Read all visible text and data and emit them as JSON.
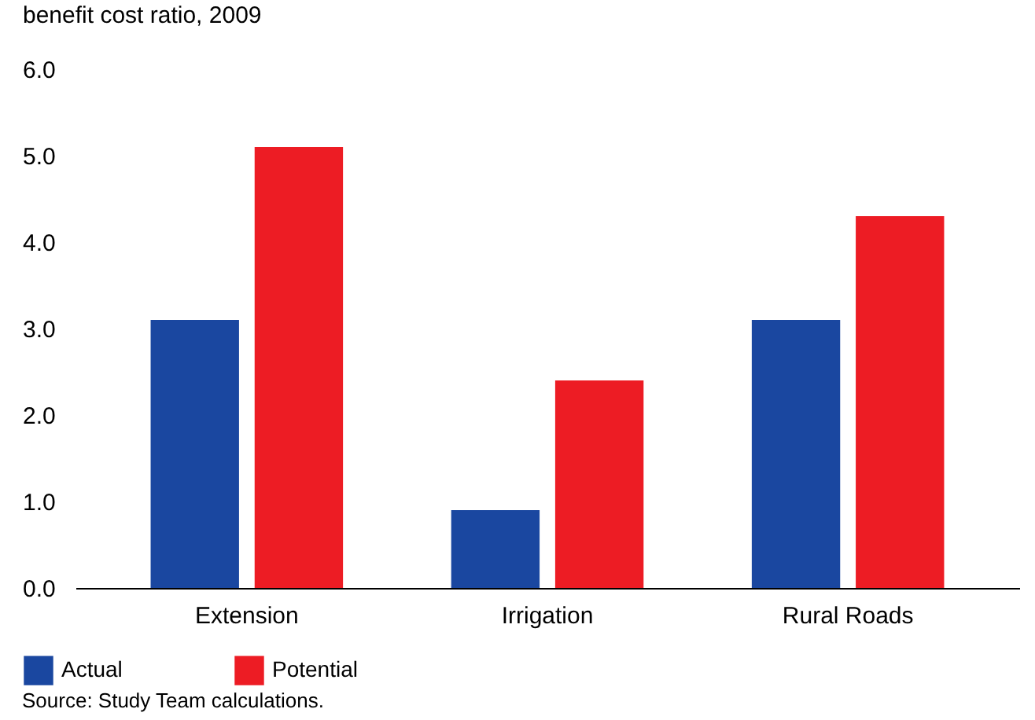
{
  "chart_data": {
    "type": "bar",
    "ylabel": "benefit cost ratio, 2009",
    "categories": [
      "Extension",
      "Irrigation",
      "Rural Roads"
    ],
    "series": [
      {
        "name": "Actual",
        "color": "#1a47a0",
        "values": [
          3.1,
          0.9,
          3.1
        ]
      },
      {
        "name": "Potential",
        "color": "#ed1c24",
        "values": [
          5.1,
          2.4,
          4.3
        ]
      }
    ],
    "ylim": [
      0,
      6
    ],
    "yticks": [
      {
        "value": 0,
        "label": "0.0"
      },
      {
        "value": 1,
        "label": "1.0"
      },
      {
        "value": 2,
        "label": "2.0"
      },
      {
        "value": 3,
        "label": "3.0"
      },
      {
        "value": 4,
        "label": "4.0"
      },
      {
        "value": 5,
        "label": "5.0"
      },
      {
        "value": 6,
        "label": "6.0"
      }
    ],
    "grid": false,
    "legend": "bottom left",
    "annotations": [
      "Source: Study Team calculations."
    ]
  }
}
